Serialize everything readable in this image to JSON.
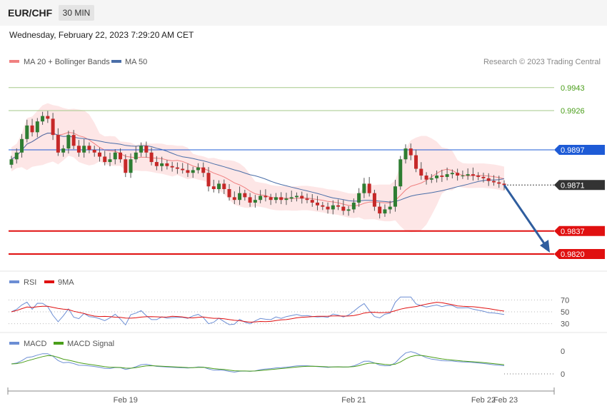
{
  "header": {
    "symbol": "EUR/CHF",
    "interval": "30 MIN",
    "datetime": "Wednesday, February 22, 2023 7:29:20 AM CET"
  },
  "legend": {
    "ma20_bb": "MA 20 + Bollinger Bands",
    "ma50": "MA 50",
    "copyright": "Research © 2023 Trading Central",
    "rsi": "RSI",
    "rsi_ma": "9MA",
    "macd": "MACD",
    "macd_signal": "MACD Signal"
  },
  "colors": {
    "bull_candle": "#2e7d32",
    "bear_candle": "#c62828",
    "ma20": "#f08080",
    "ma50": "#4a6ea8",
    "bands_fill": "#fde3e3",
    "resistance_green": "#a5c98a",
    "pivot_blue": "#1e5bd6",
    "support_red": "#e01010",
    "last_price": "#333333",
    "arrow": "#2f5d9e",
    "rsi": "#6c8ed4",
    "rsi_ma": "#e01010",
    "macd": "#6c8ed4",
    "macd_signal": "#4a9e1a"
  },
  "chart_data": [
    {
      "type": "candlestick",
      "title": "EUR/CHF",
      "x_ticks": [
        "Feb 19",
        "Feb 21",
        "Feb 22",
        "Feb 23"
      ],
      "ylim": [
        0.981,
        0.9955
      ],
      "levels": [
        {
          "value": 0.9943,
          "label": "0.9943",
          "role": "resistance",
          "color": "#a5c98a"
        },
        {
          "value": 0.9926,
          "label": "0.9926",
          "role": "resistance",
          "color": "#a5c98a"
        },
        {
          "value": 0.9897,
          "label": "0.9897",
          "role": "pivot",
          "color": "#1e5bd6"
        },
        {
          "value": 0.9871,
          "label": "0.9871",
          "role": "last",
          "color": "#333333"
        },
        {
          "value": 0.9837,
          "label": "0.9837",
          "role": "support",
          "color": "#e01010"
        },
        {
          "value": 0.982,
          "label": "0.9820",
          "role": "support",
          "color": "#e01010"
        }
      ],
      "close": [
        0.989,
        0.9895,
        0.9905,
        0.9915,
        0.991,
        0.9918,
        0.9922,
        0.992,
        0.9908,
        0.9895,
        0.9898,
        0.9908,
        0.99,
        0.9895,
        0.99,
        0.9897,
        0.9895,
        0.9892,
        0.9888,
        0.989,
        0.9895,
        0.989,
        0.988,
        0.989,
        0.9895,
        0.99,
        0.9895,
        0.9888,
        0.9885,
        0.9887,
        0.9885,
        0.9884,
        0.9883,
        0.9882,
        0.988,
        0.9882,
        0.9884,
        0.988,
        0.987,
        0.9868,
        0.9872,
        0.9868,
        0.9862,
        0.986,
        0.9865,
        0.9862,
        0.9858,
        0.986,
        0.9863,
        0.9862,
        0.986,
        0.9862,
        0.986,
        0.9861,
        0.9862,
        0.9863,
        0.9861,
        0.986,
        0.9858,
        0.9856,
        0.9855,
        0.9853,
        0.9856,
        0.9855,
        0.9852,
        0.9853,
        0.9858,
        0.9865,
        0.9872,
        0.9865,
        0.9855,
        0.985,
        0.9853,
        0.9855,
        0.987,
        0.989,
        0.9898,
        0.9893,
        0.9883,
        0.9878,
        0.9875,
        0.9876,
        0.9878,
        0.9877,
        0.9879,
        0.988,
        0.9878,
        0.9878,
        0.9879,
        0.9878,
        0.9877,
        0.9876,
        0.9874,
        0.9873,
        0.9872,
        0.9871
      ],
      "rsi": {
        "ylim": [
          20,
          80
        ],
        "ticks": [
          70,
          50,
          30
        ]
      },
      "macd": {
        "ticks": [
          0,
          0
        ]
      }
    }
  ],
  "axis": {
    "x_ticks": [
      "Feb 19",
      "Feb 21",
      "Feb 22",
      "Feb 23"
    ],
    "rsi_ticks": [
      "70",
      "50",
      "30"
    ],
    "macd_ticks": [
      "0",
      "0"
    ]
  }
}
